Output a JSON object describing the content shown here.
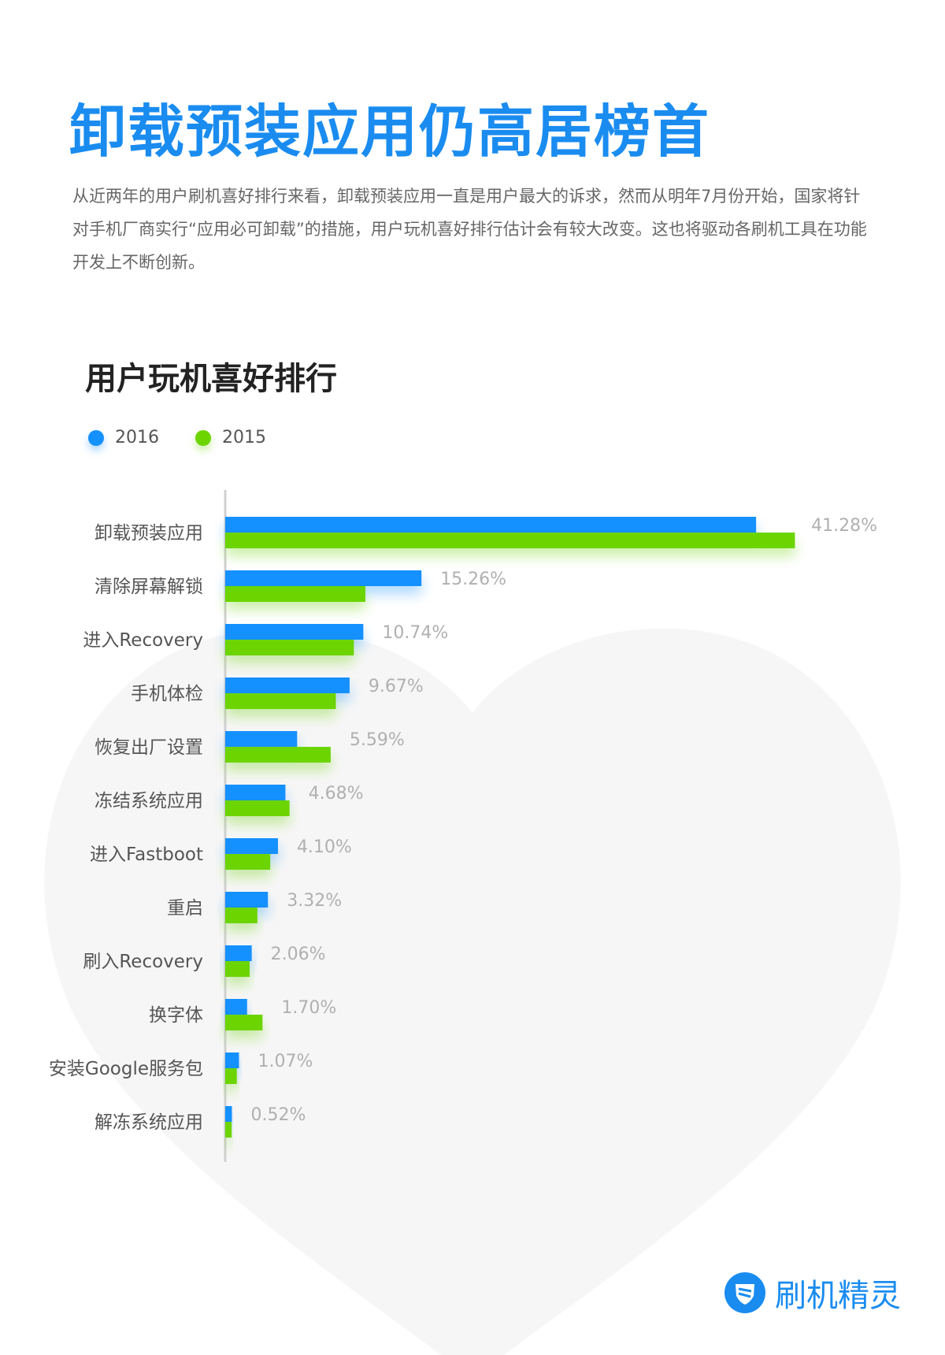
{
  "header": {
    "title": "卸载预装应用仍高居榜首",
    "intro": "从近两年的用户刷机喜好排行来看，卸载预装应用一直是用户最大的诉求，然而从明年7月份开始，国家将针对手机厂商实行“应用必可卸载”的措施，用户玩机喜好排行估计会有较大改变。这也将驱动各刷机工具在功能开发上不断创新。"
  },
  "chart_data": {
    "type": "bar",
    "orientation": "horizontal",
    "title": "用户玩机喜好排行",
    "categories": [
      "卸载预装应用",
      "清除屏幕解锁",
      "进入Recovery",
      "手机体检",
      "恢复出厂设置",
      "冻结系统应用",
      "进入Fastboot",
      "重启",
      "刷入Recovery",
      "换字体",
      "安装Google服务包",
      "解冻系统应用"
    ],
    "series": [
      {
        "name": "2016",
        "color": "#1590ff",
        "values": [
          41.28,
          15.26,
          10.74,
          9.67,
          5.59,
          4.68,
          4.1,
          3.32,
          2.06,
          1.7,
          1.07,
          0.52
        ]
      },
      {
        "name": "2015",
        "color": "#6cd400",
        "values": [
          44.3,
          10.9,
          10.0,
          8.6,
          8.2,
          5.0,
          3.5,
          2.5,
          1.9,
          2.9,
          0.9,
          0.5
        ]
      }
    ],
    "data_labels": [
      "41.28%",
      "15.26%",
      "10.74%",
      "9.67%",
      "5.59%",
      "4.68%",
      "4.10%",
      "3.32%",
      "2.06%",
      "1.70%",
      "1.07%",
      "0.52%"
    ],
    "legend_position": "top-left",
    "grid": false
  },
  "logo": {
    "text": "刷机精灵",
    "icon": "shield-s-icon",
    "color": "#1a8cf0"
  }
}
